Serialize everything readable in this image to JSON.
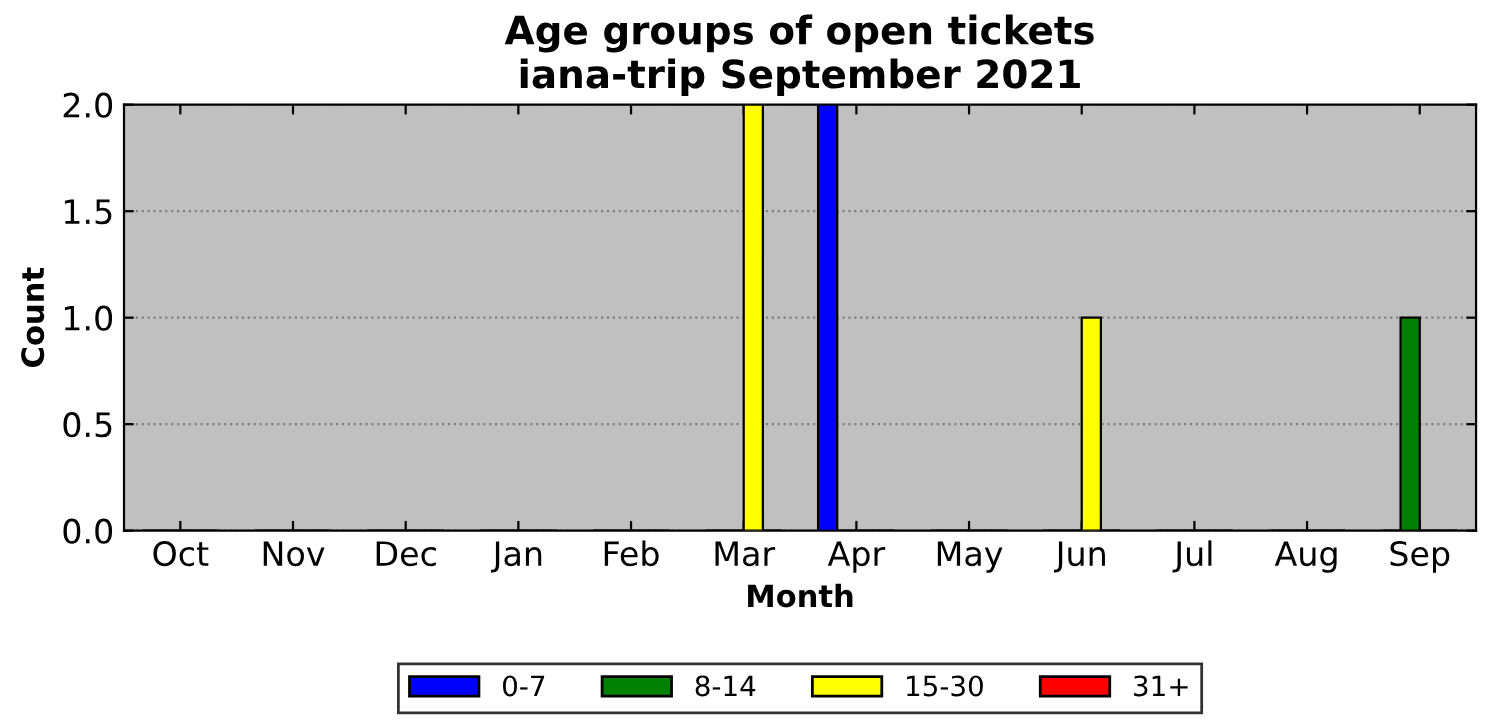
{
  "chart_data": {
    "type": "bar",
    "title": "Age groups of open tickets\niana-trip September 2021",
    "xlabel": "Month",
    "ylabel": "Count",
    "categories": [
      "Oct",
      "Nov",
      "Dec",
      "Jan",
      "Feb",
      "Mar",
      "Apr",
      "May",
      "Jun",
      "Jul",
      "Aug",
      "Sep"
    ],
    "series": [
      {
        "name": "0-7",
        "color": "#0000ff",
        "values": [
          0,
          0,
          0,
          0,
          0,
          0,
          2,
          0,
          0,
          0,
          0,
          0
        ]
      },
      {
        "name": "8-14",
        "color": "#008000",
        "values": [
          0,
          0,
          0,
          0,
          0,
          0,
          0,
          0,
          0,
          0,
          0,
          1
        ]
      },
      {
        "name": "15-30",
        "color": "#ffff00",
        "values": [
          0,
          0,
          0,
          0,
          0,
          2,
          0,
          0,
          1,
          0,
          0,
          0
        ]
      },
      {
        "name": "31+",
        "color": "#ff0000",
        "values": [
          0,
          0,
          0,
          0,
          0,
          0,
          0,
          0,
          0,
          0,
          0,
          0
        ]
      }
    ],
    "ylim": [
      0,
      2
    ],
    "yticks": [
      {
        "value": 0,
        "label": "0.0"
      },
      {
        "value": 0.5,
        "label": "0.5"
      },
      {
        "value": 1,
        "label": "1.0"
      },
      {
        "value": 1.5,
        "label": "1.5"
      },
      {
        "value": 2,
        "label": "2.0"
      }
    ],
    "grid": "y",
    "legend": "bottom"
  }
}
